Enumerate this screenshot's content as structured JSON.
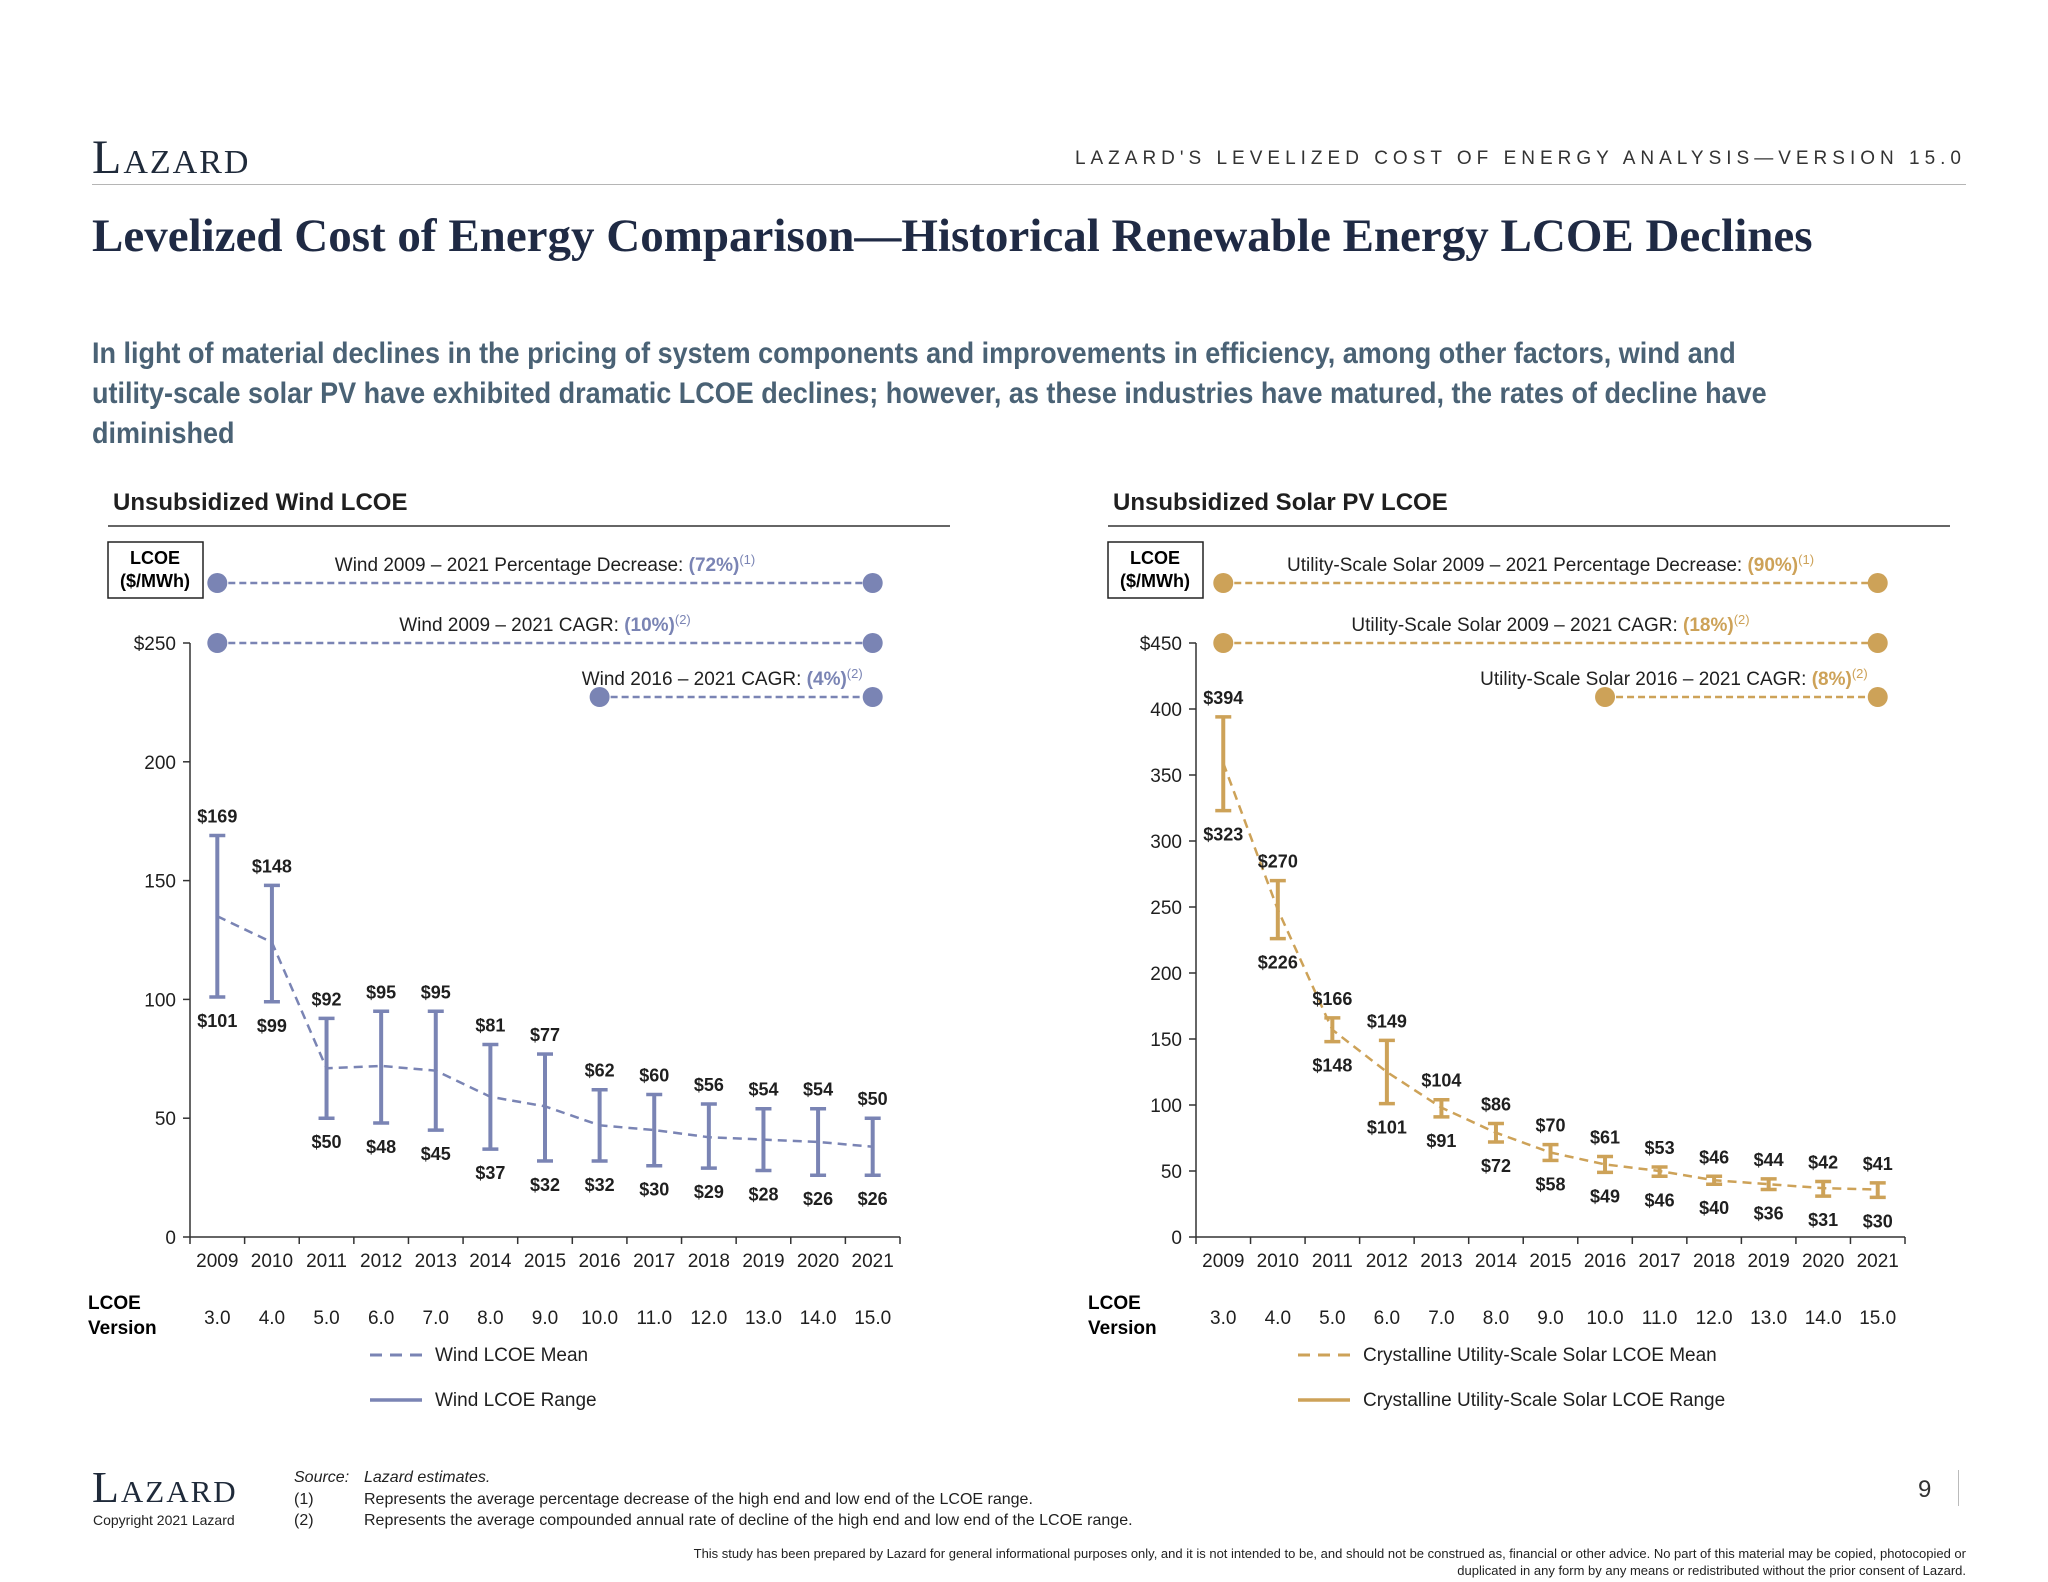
{
  "header": {
    "logo": "Lazard",
    "tagline": "LAZARD'S LEVELIZED COST OF ENERGY ANALYSIS—VERSION 15.0"
  },
  "title": "Levelized Cost of Energy Comparison—Historical Renewable Energy LCOE Declines",
  "subtitle": "In light of material declines in the pricing of system components and improvements in efficiency, among other factors, wind and utility-scale solar PV have exhibited dramatic LCOE declines; however, as these industries have matured, the rates of decline have diminished",
  "colors": {
    "wind": "#7a84b4",
    "solar": "#cda258",
    "title": "#1f2a44",
    "subtitle": "#4a6275"
  },
  "chart_data": [
    {
      "type": "line",
      "title": "Unsubsidized Wind LCOE",
      "unit_box": [
        "LCOE",
        "($/MWh)"
      ],
      "ylim": [
        0,
        250
      ],
      "yticks": [
        "0",
        "50",
        "100",
        "150",
        "200",
        "$250"
      ],
      "x": [
        "2009",
        "2010",
        "2011",
        "2012",
        "2013",
        "2014",
        "2015",
        "2016",
        "2017",
        "2018",
        "2019",
        "2020",
        "2021"
      ],
      "versions_label": [
        "LCOE",
        "Version"
      ],
      "versions": [
        "3.0",
        "4.0",
        "5.0",
        "6.0",
        "7.0",
        "8.0",
        "9.0",
        "10.0",
        "11.0",
        "12.0",
        "13.0",
        "14.0",
        "15.0"
      ],
      "series": [
        {
          "name": "Wind LCOE Mean",
          "values": [
            135,
            124,
            71,
            72,
            70,
            59,
            55,
            47,
            45,
            42,
            41,
            40,
            38
          ]
        },
        {
          "name": "Wind LCOE Range",
          "high": [
            169,
            148,
            92,
            95,
            95,
            81,
            77,
            62,
            60,
            56,
            54,
            54,
            50
          ],
          "low": [
            101,
            99,
            50,
            48,
            45,
            37,
            32,
            32,
            30,
            29,
            28,
            26,
            26
          ],
          "high_labels": [
            "$169",
            "$148",
            "$92",
            "$95",
            "$95",
            "$81",
            "$77",
            "$62",
            "$60",
            "$56",
            "$54",
            "$54",
            "$50"
          ],
          "low_labels": [
            "$101",
            "$99",
            "$50",
            "$48",
            "$45",
            "$37",
            "$32",
            "$32",
            "$30",
            "$29",
            "$28",
            "$26",
            "$26"
          ]
        }
      ],
      "annotations": [
        {
          "label": "Wind 2009 – 2021 Percentage Decrease: ",
          "value": "(72%)",
          "note": "(1)",
          "from": "2009",
          "to": "2021"
        },
        {
          "label": "Wind 2009 – 2021 CAGR: ",
          "value": "(10%)",
          "note": "(2)",
          "from": "2009",
          "to": "2021"
        },
        {
          "label": "Wind 2016 – 2021 CAGR: ",
          "value": "(4%)",
          "note": "(2)",
          "from": "2016",
          "to": "2021"
        }
      ]
    },
    {
      "type": "line",
      "title": "Unsubsidized Solar PV LCOE",
      "unit_box": [
        "LCOE",
        "($/MWh)"
      ],
      "ylim": [
        0,
        450
      ],
      "yticks": [
        "0",
        "50",
        "100",
        "150",
        "200",
        "250",
        "300",
        "350",
        "400",
        "$450"
      ],
      "x": [
        "2009",
        "2010",
        "2011",
        "2012",
        "2013",
        "2014",
        "2015",
        "2016",
        "2017",
        "2018",
        "2019",
        "2020",
        "2021"
      ],
      "versions_label": [
        "LCOE",
        "Version"
      ],
      "versions": [
        "3.0",
        "4.0",
        "5.0",
        "6.0",
        "7.0",
        "8.0",
        "9.0",
        "10.0",
        "11.0",
        "12.0",
        "13.0",
        "14.0",
        "15.0"
      ],
      "series": [
        {
          "name": "Crystalline Utility-Scale Solar LCOE Mean",
          "values": [
            359,
            248,
            157,
            125,
            98,
            79,
            64,
            55,
            50,
            43,
            40,
            37,
            36
          ]
        },
        {
          "name": "Crystalline Utility-Scale Solar LCOE Range",
          "high": [
            394,
            270,
            166,
            149,
            104,
            86,
            70,
            61,
            53,
            46,
            44,
            42,
            41
          ],
          "low": [
            323,
            226,
            148,
            101,
            91,
            72,
            58,
            49,
            46,
            40,
            36,
            31,
            30
          ],
          "high_labels": [
            "$394",
            "$270",
            "$166",
            "$149",
            "$104",
            "$86",
            "$70",
            "$61",
            "$53",
            "$46",
            "$44",
            "$42",
            "$41"
          ],
          "low_labels": [
            "$323",
            "$226",
            "$148",
            "$101",
            "$91",
            "$72",
            "$58",
            "$49",
            "$46",
            "$40",
            "$36",
            "$31",
            "$30"
          ]
        }
      ],
      "annotations": [
        {
          "label": "Utility-Scale Solar 2009 – 2021 Percentage Decrease: ",
          "value": "(90%)",
          "note": "(1)",
          "from": "2009",
          "to": "2021"
        },
        {
          "label": "Utility-Scale Solar 2009 – 2021 CAGR: ",
          "value": "(18%)",
          "note": "(2)",
          "from": "2009",
          "to": "2021"
        },
        {
          "label": "Utility-Scale Solar 2016 – 2021 CAGR: ",
          "value": "(8%)",
          "note": "(2)",
          "from": "2016",
          "to": "2021"
        }
      ]
    }
  ],
  "footer": {
    "logo": "Lazard",
    "copyright": "Copyright 2021 Lazard",
    "source_label": "Source:",
    "source_text": "Lazard estimates.",
    "notes": [
      {
        "marker": "(1)",
        "text": "Represents the average percentage decrease of the high end and low end of the LCOE range."
      },
      {
        "marker": "(2)",
        "text": "Represents the average compounded annual rate of decline of the high end and low end of the LCOE range."
      }
    ],
    "page_number": "9",
    "disclaimer": "This study has been prepared by Lazard for general informational purposes only, and it is not intended to be, and should not be construed as, financial or other advice. No part of this material may be copied, photocopied or duplicated in any form by any means or redistributed without the prior consent of Lazard."
  }
}
